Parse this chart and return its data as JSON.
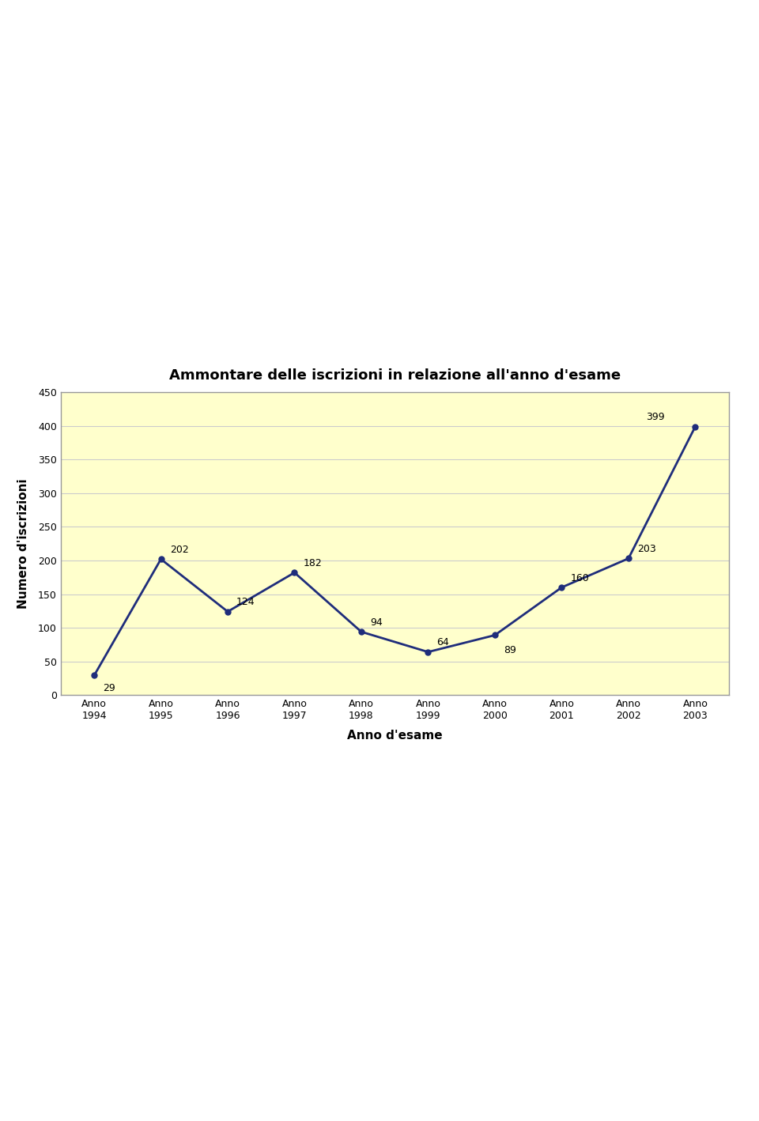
{
  "title": "Ammontare delle iscrizioni in relazione all'anno d'esame",
  "xlabel": "Anno d'esame",
  "ylabel": "Numero d'iscrizioni",
  "years": [
    "Anno\n1994",
    "Anno\n1995",
    "Anno\n1996",
    "Anno\n1997",
    "Anno\n1998",
    "Anno\n1999",
    "Anno\n2000",
    "Anno\n2001",
    "Anno\n2002",
    "Anno\n2003"
  ],
  "values": [
    29,
    202,
    124,
    182,
    94,
    64,
    89,
    160,
    203,
    399
  ],
  "ylim": [
    0,
    450
  ],
  "yticks": [
    0,
    50,
    100,
    150,
    200,
    250,
    300,
    350,
    400,
    450
  ],
  "line_color": "#1F2D7B",
  "marker_color": "#1F2D7B",
  "bg_color": "#FFFFCC",
  "plot_area_bg": "#FFFFCC",
  "outer_bg": "#FFFFFF",
  "border_color": "#999999",
  "grid_color": "#CCCCCC",
  "title_fontsize": 13,
  "axis_label_fontsize": 11,
  "tick_fontsize": 9,
  "annotation_fontsize": 9
}
